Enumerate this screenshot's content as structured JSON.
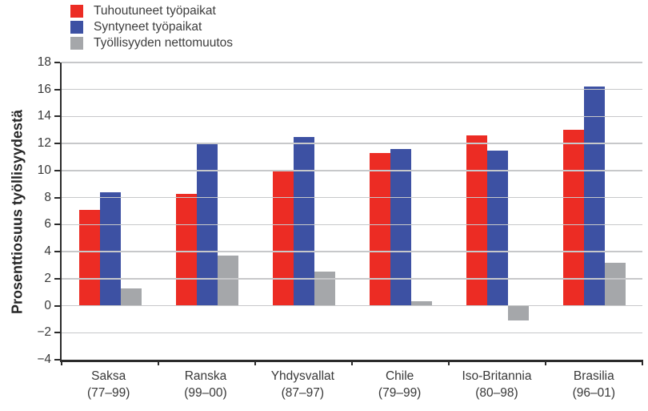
{
  "chart_data": {
    "type": "bar",
    "title": "",
    "xlabel": "",
    "ylabel": "Prosenttiosuus työllisyydestä",
    "ylim": [
      -4,
      18
    ],
    "ytick_step": 2,
    "yticks": [
      18,
      16,
      14,
      12,
      10,
      8,
      6,
      4,
      2,
      0,
      -2,
      -4
    ],
    "grid": true,
    "legend_position": "top-left",
    "categories": [
      "Saksa",
      "Ranska",
      "Yhdysvallat",
      "Chile",
      "Iso-Britannia",
      "Brasilia"
    ],
    "category_periods": [
      "(77–99)",
      "(99–00)",
      "(87–97)",
      "(79–99)",
      "(80–98)",
      "(96–01)"
    ],
    "series": [
      {
        "name": "Tuhoutuneet työpaikat",
        "color": "#ec2c24",
        "values": [
          7.1,
          8.3,
          10.0,
          11.3,
          12.6,
          13.0
        ]
      },
      {
        "name": "Syntyneet työpaikat",
        "color": "#3d51a3",
        "values": [
          8.4,
          12.0,
          12.5,
          11.6,
          11.5,
          16.2
        ]
      },
      {
        "name": "Työllisyyden nettomuutos",
        "color": "#a5a7aa",
        "values": [
          1.3,
          3.7,
          2.5,
          0.3,
          -1.1,
          3.2
        ]
      }
    ]
  },
  "style_colors": {
    "gridline": "#c7c8ca",
    "axis": "#2b2b2b",
    "text": "#383838"
  }
}
